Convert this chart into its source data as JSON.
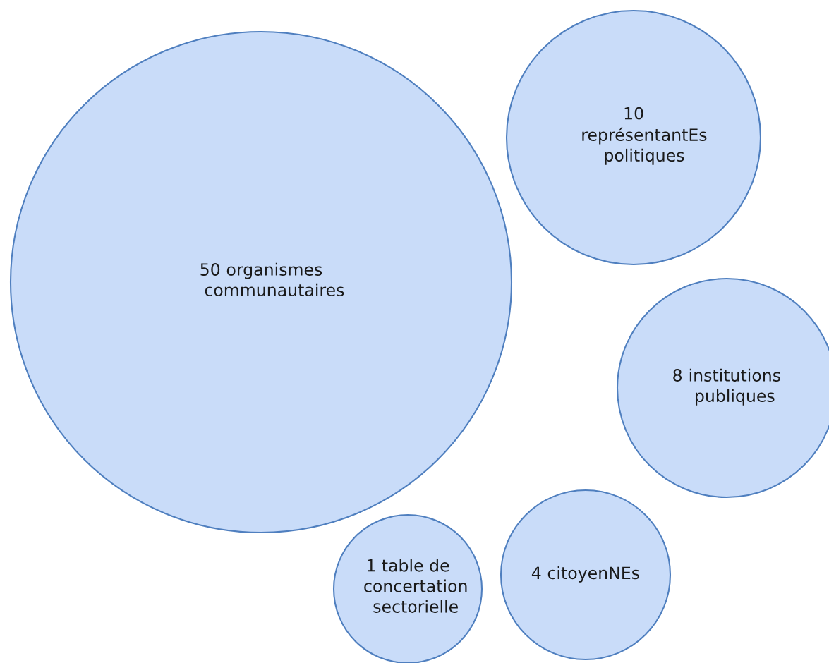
{
  "chart_data": {
    "type": "other",
    "categories": [
      "organismes\ncommunautaires",
      "\nreprésentantEs\npolitiques",
      "institutions\npubliques",
      "citoyenNEs",
      "table de\nconcertation\nsectorielle"
    ],
    "values": [
      50,
      10,
      8,
      4,
      1
    ],
    "data_labels": true,
    "colors": [
      "#c9dcf9",
      "#c9dcf9",
      "#c9dcf9",
      "#c9dcf9",
      "#c9dcf9"
    ]
  }
}
